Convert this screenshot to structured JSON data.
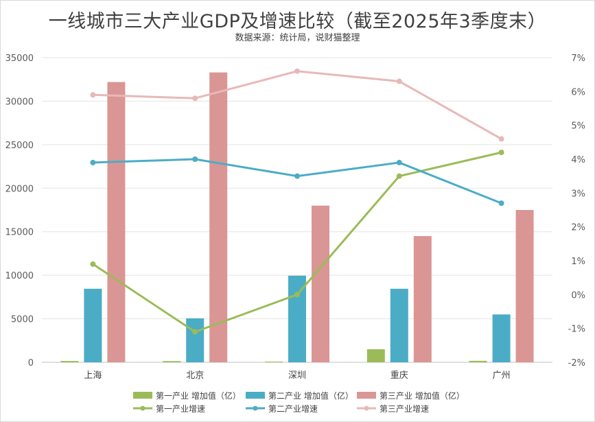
{
  "chart_data": {
    "type": "bar+line",
    "title": "一线城市三大产业GDP及增速比较（截至2025年3季度末）",
    "subtitle": "数据来源：统计局，说财猫整理",
    "categories": [
      "上海",
      "北京",
      "深圳",
      "重庆",
      "广州"
    ],
    "bar_series": [
      {
        "name": "第一产业 增加值（亿）",
        "color": "#9bbb59",
        "values": [
          150,
          140,
          80,
          1500,
          170
        ]
      },
      {
        "name": "第二产业 增加值（亿）",
        "color": "#4bacc6",
        "values": [
          8450,
          5050,
          9950,
          8450,
          5500
        ]
      },
      {
        "name": "第三产业  增加值（亿）",
        "color": "#da9694",
        "values": [
          32200,
          33300,
          18000,
          14500,
          17500
        ]
      }
    ],
    "line_series": [
      {
        "name": "第一产业增速",
        "color": "#9bbb59",
        "values": [
          0.9,
          -1.1,
          0.0,
          3.5,
          4.2
        ]
      },
      {
        "name": "第二产业增速",
        "color": "#4bacc6",
        "values": [
          3.9,
          4.0,
          3.5,
          3.9,
          2.7
        ]
      },
      {
        "name": "第三产业增速",
        "color": "#e6b9b8",
        "values": [
          5.9,
          5.8,
          6.6,
          6.3,
          4.6
        ]
      }
    ],
    "y_left": {
      "min": 0,
      "max": 35000,
      "step": 5000,
      "tick_labels": [
        "0",
        "5000",
        "10000",
        "15000",
        "20000",
        "25000",
        "30000",
        "35000"
      ]
    },
    "y_right": {
      "min": -2,
      "max": 7,
      "step": 1,
      "tick_labels": [
        "-2%",
        "-1%",
        "0%",
        "1%",
        "2%",
        "3%",
        "4%",
        "5%",
        "6%",
        "7%"
      ]
    },
    "grid": true,
    "legend_position": "bottom"
  }
}
